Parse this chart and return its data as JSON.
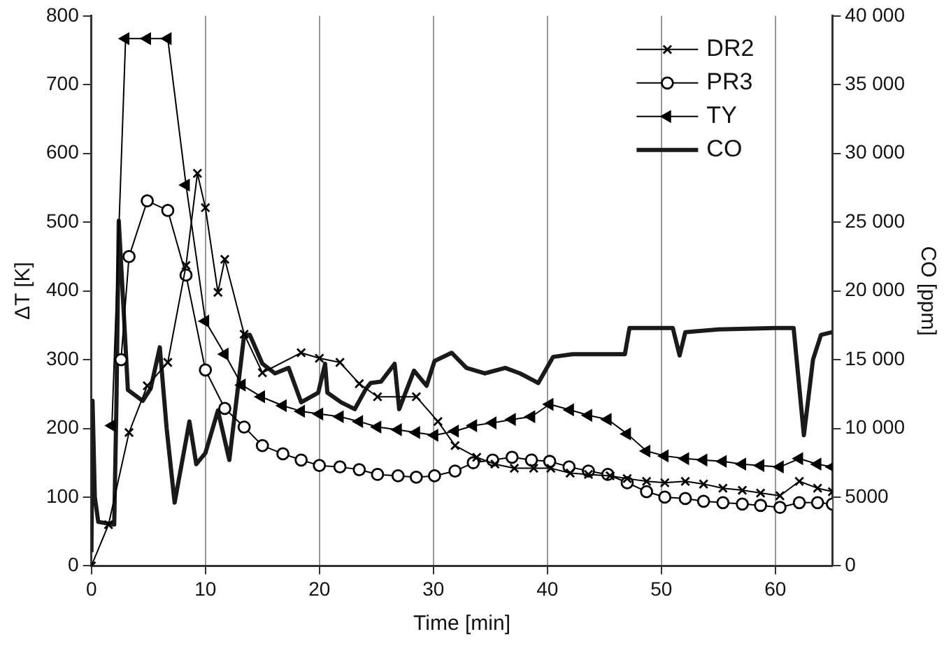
{
  "chart_data": {
    "type": "line",
    "xlabel": "Time [min]",
    "ylabel": "ΔT [K]",
    "y2label": "CO [ppm]",
    "xlim": [
      0,
      65
    ],
    "xticks": [
      0,
      10,
      20,
      30,
      40,
      50,
      60
    ],
    "ylim": [
      0,
      800
    ],
    "yticks": [
      0,
      100,
      200,
      300,
      400,
      500,
      600,
      700,
      800
    ],
    "y2lim": [
      0,
      40000
    ],
    "y2ticks": [
      0,
      5000,
      {
        "value": 10000,
        "label": "10 000"
      },
      {
        "value": 15000,
        "label": "15 000"
      },
      {
        "value": 20000,
        "label": "20 000"
      },
      {
        "value": 25000,
        "label": "25 000"
      },
      {
        "value": 30000,
        "label": "30 000"
      },
      {
        "value": 35000,
        "label": "35 000"
      },
      {
        "value": 40000,
        "label": "40 000"
      }
    ],
    "grid": "x",
    "legend": "top right",
    "series": [
      {
        "name": "DR2",
        "color": "#000000",
        "marker": "cross",
        "x": [
          0,
          1.5,
          3.3,
          4.9,
          6.7,
          8.3,
          9.3,
          10,
          11.1,
          11.7,
          13.4,
          15,
          18.4,
          20,
          21.8,
          23.5,
          25.1,
          28.5,
          30.4,
          31.9,
          33.8,
          35.4,
          37.1,
          38.8,
          40.3,
          42,
          43.6,
          45.5,
          47,
          48.7,
          50.3,
          52.1,
          53.7,
          55.4,
          57.1,
          58.7,
          60.4,
          62.1,
          63.7,
          65
        ],
        "values": [
          0,
          60,
          194,
          262,
          296,
          437,
          571,
          521,
          398,
          446,
          337,
          281,
          310,
          302,
          296,
          265,
          246,
          246,
          210,
          175,
          158,
          148,
          142,
          142,
          142,
          135,
          133,
          131,
          127,
          123,
          121,
          123,
          119,
          113,
          110,
          106,
          102,
          123,
          113,
          108
        ]
      },
      {
        "name": "PR3",
        "color": "#000000",
        "marker": "circle",
        "x": [
          2.6,
          3.3,
          4.9,
          6.7,
          8.3,
          10,
          11.7,
          13.4,
          15,
          16.8,
          18.4,
          20,
          21.8,
          23.5,
          25.1,
          26.9,
          28.5,
          30.1,
          31.9,
          33.5,
          35.2,
          36.9,
          38.6,
          40.2,
          41.9,
          43.6,
          45.3,
          47,
          48.7,
          50.3,
          52.1,
          53.7,
          55.4,
          57.1,
          58.7,
          60.4,
          62.1,
          63.7,
          65
        ],
        "values": [
          300,
          450,
          531,
          517,
          423,
          285,
          229,
          202,
          175,
          163,
          154,
          146,
          144,
          140,
          133,
          131,
          129,
          131,
          138,
          150,
          154,
          158,
          154,
          152,
          144,
          138,
          133,
          121,
          108,
          100,
          98,
          94,
          92,
          90,
          88,
          85,
          92,
          92,
          90
        ]
      },
      {
        "name": "TY",
        "color": "#000000",
        "marker": "triangle",
        "x": [
          1.8,
          3,
          4.9,
          6.7,
          8.3,
          10,
          11.7,
          13.2,
          14.9,
          16.8,
          18.4,
          20,
          21.8,
          23.5,
          25.1,
          26.9,
          28.5,
          30.1,
          31.9,
          33.5,
          35.2,
          36.9,
          38.6,
          40.2,
          42,
          43.6,
          45.3,
          47,
          48.7,
          50.3,
          52.1,
          53.7,
          55.4,
          57.1,
          58.7,
          60.4,
          62.1,
          63.7,
          65
        ],
        "values": [
          204,
          767,
          767,
          767,
          554,
          356,
          308,
          263,
          246,
          233,
          225,
          221,
          217,
          210,
          202,
          198,
          194,
          190,
          196,
          204,
          208,
          213,
          217,
          235,
          227,
          219,
          213,
          192,
          167,
          160,
          156,
          154,
          152,
          148,
          146,
          144,
          156,
          148,
          144
        ]
      },
      {
        "name": "CO",
        "color": "#1a1a1a",
        "marker": "none",
        "axis": "y2",
        "x": [
          0,
          0.1,
          0.3,
          0.6,
          2,
          2.2,
          2.4,
          2.8,
          3.2,
          4.5,
          5.2,
          6,
          6.6,
          7.3,
          8.6,
          9.2,
          10,
          11.1,
          12.1,
          13.4,
          13.9,
          15,
          16.1,
          17.3,
          18.4,
          19.9,
          20.5,
          20.7,
          21.9,
          23.1,
          24.1,
          24.5,
          25.4,
          26.6,
          27,
          28.3,
          29.4,
          30.1,
          31.6,
          32.9,
          34.5,
          36.3,
          37.6,
          39.2,
          40.5,
          42.2,
          44.7,
          46.8,
          47.2,
          51,
          51.6,
          52.1,
          55,
          60,
          61.6,
          62.5,
          63.3,
          64,
          65
        ],
        "values": [
          1000,
          12000,
          5000,
          3200,
          3000,
          12000,
          25100,
          19000,
          12800,
          12000,
          12900,
          15900,
          10000,
          4600,
          10500,
          7400,
          8200,
          11300,
          7700,
          16800,
          16800,
          14700,
          14000,
          14400,
          11900,
          12600,
          14700,
          12600,
          11900,
          11400,
          12900,
          13300,
          13400,
          14700,
          11400,
          14200,
          13100,
          14900,
          15500,
          14400,
          14000,
          14400,
          14000,
          13300,
          15200,
          15400,
          15400,
          15400,
          17300,
          17300,
          15300,
          17000,
          17200,
          17300,
          17300,
          9500,
          15000,
          16800,
          17000
        ]
      }
    ]
  }
}
